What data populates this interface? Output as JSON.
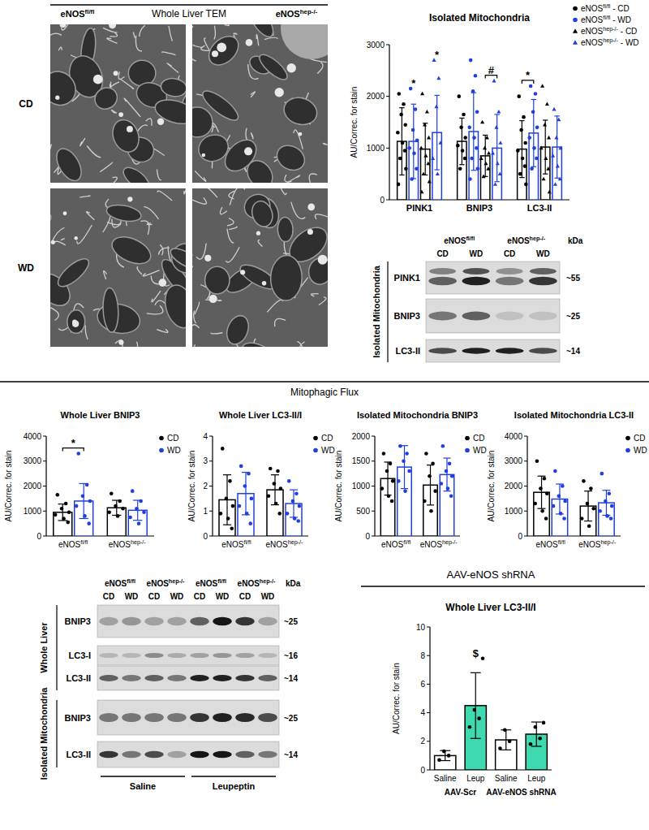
{
  "tem": {
    "title": "Whole Liver TEM",
    "columns": [
      "eNOSfl/fl",
      "eNOShep-/-"
    ],
    "rows": [
      "CD",
      "WD"
    ]
  },
  "blot_top": {
    "columns": [
      "eNOSfl/fl",
      "eNOShep-/-"
    ],
    "lanes": [
      "CD",
      "WD",
      "CD",
      "WD"
    ],
    "kda_header": "kDa",
    "groups": [
      {
        "label": "Isolated Mitochondria",
        "rows": [
          {
            "label": "PINK1",
            "kda": "~55"
          },
          {
            "label": "BNIP3",
            "kda": "~25"
          },
          {
            "label": "LC3-II",
            "kda": "~14"
          }
        ]
      }
    ]
  },
  "sections": [
    "Mitophagic Flux",
    "AAV-eNOS shRNA"
  ],
  "blot_bottom": {
    "columns": [
      "eNOSfl/fl",
      "eNOShep-/-",
      "eNOSfl/fl",
      "eNOShep-/-"
    ],
    "lanes": [
      "CD",
      "WD",
      "CD",
      "WD",
      "CD",
      "WD",
      "CD",
      "WD"
    ],
    "kda_header": "kDa",
    "groups": [
      {
        "label": "Whole Liver",
        "rows": [
          {
            "label": "BNIP3",
            "kda": "~25"
          },
          {
            "label": "LC3-I",
            "kda": "~16"
          },
          {
            "label": "LC3-II",
            "kda": "~14"
          }
        ]
      },
      {
        "label": "Isolated Mitochondria",
        "rows": [
          {
            "label": "BNIP3",
            "kda": "~25"
          },
          {
            "label": "LC3-II",
            "kda": "~14"
          }
        ]
      }
    ],
    "treatments": [
      "Saline",
      "Leupeptin"
    ]
  },
  "chart_data": [
    {
      "type": "bar",
      "title": "Isolated Mitochondria",
      "y_label": "AU/Correc. for stain",
      "categories": [
        "PINK1",
        "BNIP3",
        "LC3-II"
      ],
      "ylim": [
        0,
        3000
      ],
      "yticks": [
        0,
        1000,
        2000,
        3000
      ],
      "grid": false,
      "legend": "top-right",
      "series": [
        {
          "name": "eNOSfl/fl - CD",
          "color": "#000000",
          "marker": "circle",
          "values": [
            1130,
            1130,
            980
          ],
          "errors": [
            650,
            450,
            550
          ],
          "points": [
            [
              2050,
              1850,
              1650,
              1450,
              1300,
              1100,
              950,
              800,
              600,
              300
            ],
            [
              2000,
              1650,
              1400,
              1200,
              1050,
              950,
              800,
              600
            ],
            [
              2000,
              1600,
              1350,
              1100,
              950,
              800,
              650,
              500,
              300
            ]
          ]
        },
        {
          "name": "eNOSfl/fl - WD",
          "color": "#1f3fe0",
          "marker": "circle",
          "values": [
            1130,
            1320,
            1290
          ],
          "errors": [
            720,
            750,
            650
          ],
          "points": [
            [
              2150,
              1750,
              1350,
              1150,
              1000,
              900,
              600,
              400
            ],
            [
              2700,
              2400,
              2100,
              1700,
              1400,
              1200,
              1000,
              800,
              600,
              400
            ],
            [
              2200,
              2050,
              1700,
              1400,
              1200,
              1000,
              800,
              600
            ]
          ]
        },
        {
          "name": "eNOShep-/- - CD",
          "color": "#000000",
          "marker": "triangle",
          "values": [
            980,
            850,
            1020
          ],
          "errors": [
            500,
            400,
            520
          ],
          "points": [
            [
              2050,
              1700,
              1450,
              1200,
              1000,
              850,
              700,
              500,
              350,
              150
            ],
            [
              1500,
              1200,
              1000,
              900,
              800,
              700,
              600,
              450
            ],
            [
              2200,
              1850,
              1450,
              1200,
              1000,
              800,
              600,
              400,
              150
            ]
          ]
        },
        {
          "name": "eNOShep-/- - WD",
          "color": "#1f3fe0",
          "marker": "triangle",
          "values": [
            1300,
            1000,
            1020
          ],
          "errors": [
            720,
            650,
            600
          ],
          "points": [
            [
              2700,
              2350,
              1800,
              1100,
              800,
              500
            ],
            [
              2300,
              1700,
              1400,
              1100,
              900,
              700,
              500,
              300
            ],
            [
              1750,
              1550,
              1200,
              1000,
              850,
              650,
              400,
              300
            ]
          ]
        }
      ],
      "annotations": [
        {
          "text": "*",
          "category": 0,
          "series": 1
        },
        {
          "text": "*",
          "category": 0,
          "series": 3
        },
        {
          "text": "#",
          "category": 1,
          "series": [
            2,
            3
          ]
        },
        {
          "text": "*",
          "category": 2,
          "series": [
            0,
            1
          ]
        }
      ]
    },
    {
      "type": "bar",
      "title": "Whole Liver BNIP3",
      "y_label": "AU/Correc. for stain",
      "categories": [
        "eNOSfl/fl",
        "eNOShep-/-"
      ],
      "ylim": [
        0,
        4000
      ],
      "yticks": [
        0,
        1000,
        2000,
        3000,
        4000
      ],
      "grid": false,
      "legend": "top-right",
      "series": [
        {
          "name": "CD",
          "color": "#000000",
          "marker": "circle",
          "values": [
            950,
            1130
          ],
          "errors": [
            330,
            300
          ],
          "points": [
            [
              1650,
              1300,
              1100,
              950,
              850,
              700,
              550
            ],
            [
              1700,
              1400,
              1200,
              1100,
              950,
              800
            ]
          ]
        },
        {
          "name": "WD",
          "color": "#1f3fe0",
          "marker": "circle",
          "values": [
            1400,
            1030
          ],
          "errors": [
            700,
            400
          ],
          "points": [
            [
              3300,
              2050,
              1600,
              1400,
              1200,
              800,
              500
            ],
            [
              1800,
              1400,
              1100,
              950,
              750,
              500
            ]
          ]
        }
      ],
      "annotations": [
        {
          "text": "*",
          "category": 0,
          "series": [
            0,
            1
          ]
        }
      ]
    },
    {
      "type": "bar",
      "title": "Whole Liver LC3-II/I",
      "y_label": "AU/Correc. for stain",
      "categories": [
        "eNOSfl/fl",
        "eNOShep-/-"
      ],
      "ylim": [
        0,
        4
      ],
      "yticks": [
        0,
        1,
        2,
        3,
        4
      ],
      "grid": false,
      "legend": "top-right",
      "series": [
        {
          "name": "CD",
          "color": "#000000",
          "marker": "circle",
          "values": [
            1.45,
            1.85
          ],
          "errors": [
            1.0,
            0.6
          ],
          "points": [
            [
              3.5,
              2.2,
              1.5,
              1.2,
              0.9,
              0.7,
              0.3
            ],
            [
              2.7,
              2.6,
              2.1,
              1.9,
              1.6,
              1.3,
              0.9
            ]
          ]
        },
        {
          "name": "WD",
          "color": "#1f3fe0",
          "marker": "circle",
          "values": [
            1.7,
            1.3
          ],
          "errors": [
            0.85,
            0.55
          ],
          "points": [
            [
              2.8,
              2.5,
              2.0,
              1.5,
              1.2,
              0.9,
              0.5
            ],
            [
              2.2,
              1.7,
              1.4,
              1.2,
              0.9,
              0.7,
              0.6
            ]
          ]
        }
      ]
    },
    {
      "type": "bar",
      "title": "Isolated Mitochondria BNIP3",
      "y_label": "AU/Correc. for stain",
      "categories": [
        "eNOSfl/fl",
        "eNOShep-/-"
      ],
      "ylim": [
        0,
        2000
      ],
      "yticks": [
        0,
        500,
        1000,
        1500,
        2000
      ],
      "grid": false,
      "legend": "top-right",
      "series": [
        {
          "name": "CD",
          "color": "#000000",
          "marker": "circle",
          "values": [
            1150,
            1020
          ],
          "errors": [
            330,
            400
          ],
          "points": [
            [
              1650,
              1450,
              1300,
              1100,
              950,
              800,
              700
            ],
            [
              1650,
              1450,
              1200,
              900,
              700,
              500
            ]
          ]
        },
        {
          "name": "WD",
          "color": "#1f3fe0",
          "marker": "circle",
          "values": [
            1380,
            1230
          ],
          "errors": [
            430,
            330
          ],
          "points": [
            [
              1800,
              1650,
              1500,
              1300,
              1100,
              900
            ],
            [
              1800,
              1450,
              1300,
              1200,
              1050,
              950,
              800
            ]
          ]
        }
      ]
    },
    {
      "type": "bar",
      "title": "Isolated Mitochondria LC3-II",
      "y_label": "AU/Correc. for stain",
      "categories": [
        "eNOSfl/fl",
        "eNOShep-/-"
      ],
      "ylim": [
        0,
        4000
      ],
      "yticks": [
        0,
        1000,
        2000,
        3000,
        4000
      ],
      "grid": false,
      "legend": "top-right",
      "series": [
        {
          "name": "CD",
          "color": "#000000",
          "marker": "circle",
          "values": [
            1750,
            1200
          ],
          "errors": [
            650,
            600
          ],
          "points": [
            [
              3000,
              2300,
              1900,
              1700,
              1300,
              1000,
              700
            ],
            [
              2200,
              1900,
              1300,
              1100,
              700,
              400
            ]
          ]
        },
        {
          "name": "WD",
          "color": "#1f3fe0",
          "marker": "circle",
          "values": [
            1480,
            1330
          ],
          "errors": [
            600,
            500
          ],
          "points": [
            [
              2600,
              2000,
              1600,
              1400,
              1200,
              900,
              700
            ],
            [
              2500,
              1700,
              1400,
              1200,
              1000,
              800,
              700
            ]
          ]
        }
      ]
    },
    {
      "type": "bar",
      "title": "Whole Liver LC3-II/I",
      "y_label": "AU/Correc. for stain",
      "categories": [
        "Saline",
        "Leup",
        "Saline",
        "Leup"
      ],
      "category_groups": [
        {
          "label": "AAV-Scr",
          "categories": [
            0,
            1
          ]
        },
        {
          "label": "AAV-eNOS shRNA",
          "categories": [
            2,
            3
          ]
        }
      ],
      "ylim": [
        0,
        10
      ],
      "yticks": [
        0,
        2,
        4,
        6,
        8,
        10
      ],
      "grid": false,
      "color": "#000000",
      "marker": "circle",
      "colors": [
        "#ffffff",
        "#3fd9b0",
        "#ffffff",
        "#3fd9b0"
      ],
      "values": [
        1.0,
        4.5,
        2.1,
        2.5
      ],
      "errors": [
        0.35,
        2.3,
        0.7,
        0.85
      ],
      "points": [
        [
          0.7,
          1.0,
          1.3
        ],
        [
          3.0,
          3.6,
          4.2,
          7.8
        ],
        [
          1.5,
          2.0,
          2.8
        ],
        [
          1.8,
          2.2,
          3.0,
          3.3
        ]
      ],
      "annotations": [
        {
          "text": "$",
          "category": 1
        }
      ]
    }
  ]
}
